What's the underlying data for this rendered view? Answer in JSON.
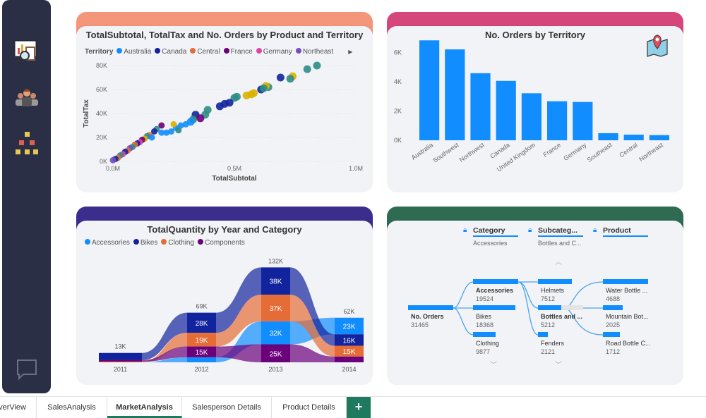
{
  "sidebar": {
    "icons": [
      "report-analysis-icon",
      "team-icon",
      "hierarchy-icon",
      "chat-icon"
    ]
  },
  "scatter": {
    "title": "TotalSubtotal, TotalTax and No. Orders by Product and Territory",
    "legend_title": "Territory",
    "colors": {
      "accent_band": "#f4967a"
    },
    "chart_data": {
      "type": "scatter",
      "title": "TotalSubtotal, TotalTax and No. Orders by Product and Territory",
      "xlabel": "TotalSubtotal",
      "ylabel": "TotalTax",
      "xlim": [
        0,
        1
      ],
      "ylim": [
        0,
        80
      ],
      "x_ticks": [
        "0.0M",
        "0.5M",
        "1.0M"
      ],
      "y_ticks": [
        "0K",
        "20K",
        "40K",
        "60K",
        "80K"
      ],
      "legend_position": "top",
      "series": [
        {
          "name": "Australia",
          "color": "#118dff"
        },
        {
          "name": "Canada",
          "color": "#12239e"
        },
        {
          "name": "Central",
          "color": "#e66c37"
        },
        {
          "name": "France",
          "color": "#6b007b"
        },
        {
          "name": "Germany",
          "color": "#e044a7"
        },
        {
          "name": "Northeast",
          "color": "#744ec2"
        },
        {
          "color": "#2d8c87"
        },
        {
          "color": "#d9b300"
        }
      ],
      "points": [
        [
          0.84,
          80,
          6
        ],
        [
          0.8,
          77,
          6
        ],
        [
          0.74,
          71,
          7
        ],
        [
          0.73,
          69,
          6
        ],
        [
          0.69,
          70,
          1
        ],
        [
          0.64,
          62,
          6
        ],
        [
          0.63,
          63,
          7
        ],
        [
          0.61,
          60,
          1
        ],
        [
          0.62,
          61,
          6
        ],
        [
          0.58,
          57,
          7
        ],
        [
          0.57,
          56,
          7
        ],
        [
          0.55,
          55,
          7
        ],
        [
          0.5,
          53,
          6
        ],
        [
          0.51,
          54,
          6
        ],
        [
          0.48,
          49,
          1
        ],
        [
          0.46,
          48,
          1
        ],
        [
          0.44,
          46,
          1
        ],
        [
          0.39,
          43,
          6
        ],
        [
          0.38,
          39,
          6
        ],
        [
          0.34,
          39,
          1
        ],
        [
          0.33,
          35,
          6
        ],
        [
          0.32,
          33,
          0
        ],
        [
          0.3,
          31,
          0
        ],
        [
          0.28,
          30,
          0
        ],
        [
          0.26,
          28,
          0
        ],
        [
          0.24,
          25,
          0
        ],
        [
          0.22,
          24,
          0
        ],
        [
          0.25,
          31,
          7
        ],
        [
          0.2,
          30,
          3
        ],
        [
          0.18,
          27,
          6
        ],
        [
          0.17,
          25,
          1
        ],
        [
          0.15,
          22,
          2
        ],
        [
          0.14,
          21,
          6
        ],
        [
          0.13,
          19,
          7
        ],
        [
          0.12,
          18,
          3
        ],
        [
          0.11,
          16,
          4
        ],
        [
          0.1,
          15,
          1
        ],
        [
          0.09,
          14,
          2
        ],
        [
          0.08,
          12,
          6
        ],
        [
          0.07,
          11,
          5
        ],
        [
          0.06,
          9,
          2
        ],
        [
          0.05,
          8,
          1
        ],
        [
          0.04,
          6,
          4
        ],
        [
          0.03,
          5,
          6
        ],
        [
          0.02,
          3,
          2
        ],
        [
          0.01,
          2,
          1
        ],
        [
          0.0,
          1,
          5
        ],
        [
          0.2,
          24,
          0
        ],
        [
          0.16,
          20,
          0
        ],
        [
          0.36,
          36,
          3
        ],
        [
          0.27,
          26,
          6
        ]
      ]
    }
  },
  "bars": {
    "title": "No. Orders by Territory",
    "icon": "map-pin-icon",
    "colors": {
      "accent_band": "#d6467a",
      "bar": "#118dff"
    },
    "chart_data": {
      "type": "bar",
      "title": "No. Orders by Territory",
      "categories": [
        "Australia",
        "Southwest",
        "Northwest",
        "Canada",
        "United Kingdom",
        "France",
        "Germany",
        "Southeast",
        "Central",
        "Northeast"
      ],
      "values": [
        6843,
        6224,
        4594,
        4067,
        3219,
        2672,
        2623,
        486,
        385,
        352
      ],
      "ylim": [
        0,
        7000
      ],
      "y_ticks": [
        "0K",
        "2K",
        "4K",
        "6K"
      ]
    }
  },
  "ribbon": {
    "title": "TotalQuantity by Year and Category",
    "colors": {
      "accent_band": "#3a2d8c"
    },
    "chart_data": {
      "type": "ribbon",
      "title": "TotalQuantity by Year and Category",
      "categories": [
        "2011",
        "2012",
        "2013",
        "2014"
      ],
      "totals": [
        "13K",
        "69K",
        "132K",
        "62K"
      ],
      "legend_position": "top",
      "series": [
        {
          "name": "Accessories",
          "color": "#118dff",
          "values": [
            0,
            7,
            32,
            23
          ]
        },
        {
          "name": "Bikes",
          "color": "#12239e",
          "values": [
            10,
            28,
            38,
            16
          ]
        },
        {
          "name": "Clothing",
          "color": "#e66c37",
          "values": [
            1,
            19,
            37,
            15
          ]
        },
        {
          "name": "Components",
          "color": "#6b007b",
          "values": [
            2,
            15,
            25,
            8
          ]
        }
      ]
    }
  },
  "tree": {
    "colors": {
      "accent_band": "#2e6b52"
    },
    "headers": [
      {
        "label": "Category",
        "sub": "Accessories"
      },
      {
        "label": "Subcateg...",
        "sub": "Bottles and C..."
      },
      {
        "label": "Product",
        "sub": ""
      }
    ],
    "root": {
      "label": "No. Orders",
      "value": "31465"
    },
    "level1": [
      {
        "label": "Accessories",
        "value": "19524"
      },
      {
        "label": "Bikes",
        "value": "18368"
      },
      {
        "label": "Clothing",
        "value": "9877"
      }
    ],
    "level2": [
      {
        "label": "Helmets",
        "value": "7512"
      },
      {
        "label": "Bottles and ...",
        "value": "5212"
      },
      {
        "label": "Fenders",
        "value": "2121"
      }
    ],
    "level3": [
      {
        "label": "Water Bottle ...",
        "value": "4688"
      },
      {
        "label": "Mountain Bot...",
        "value": "2025"
      },
      {
        "label": "Road Bottle C...",
        "value": "1712"
      }
    ]
  },
  "tabs": {
    "items": [
      "OverView",
      "SalesAnalysis",
      "MarketAnalysis",
      "Salesperson Details",
      "Product Details"
    ],
    "active": "MarketAnalysis",
    "add": "+"
  }
}
